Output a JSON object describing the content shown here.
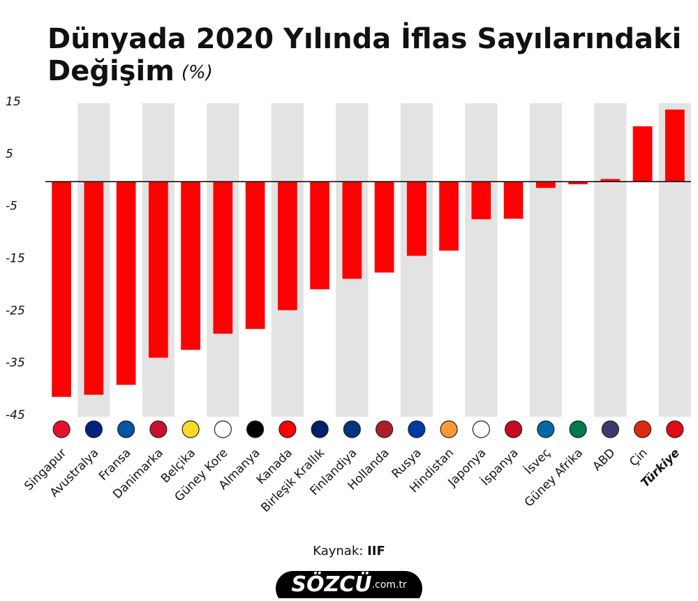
{
  "chart_data": {
    "type": "bar",
    "title": "Dünyada 2020 Yılında İflas Sayılarındaki Değişim",
    "unit": "(%)",
    "categories": [
      "Singapur",
      "Avustralya",
      "Fransa",
      "Danimarka",
      "Belçika",
      "Güney Kore",
      "Almanya",
      "Kanada",
      "Birleşik Krallık",
      "Finlandiya",
      "Hollanda",
      "Rusya",
      "Hindistan",
      "Japonya",
      "İspanya",
      "İsveç",
      "Güney Afrika",
      "ABD",
      "Çin",
      "Türkiye"
    ],
    "values": [
      -41.2,
      -40.8,
      -38.9,
      -33.7,
      -32.2,
      -29.1,
      -28.2,
      -24.6,
      -20.6,
      -18.6,
      -17.4,
      -14.2,
      -13.2,
      -7.2,
      -7.1,
      -1.2,
      -0.5,
      0.5,
      10.6,
      13.8
    ],
    "color": "#ff0000",
    "highlight_index": 19,
    "ylim": [
      -45,
      15
    ],
    "yticks": [
      15,
      5,
      -5,
      -15,
      -25,
      -35,
      -45
    ]
  },
  "source_label": "Kaynak:",
  "source": "IIF",
  "logo": "SÖZCÜ",
  "logo_domain": ".com.tr"
}
